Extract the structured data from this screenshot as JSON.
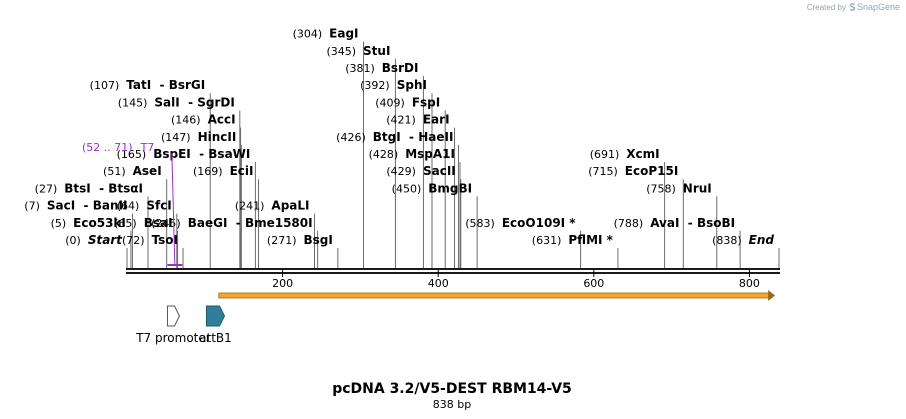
{
  "credit": {
    "prefix": "Created by",
    "brand": "SnapGene"
  },
  "map": {
    "title": "pcDNA 3.2/V5-DEST RBM14-V5",
    "subtitle": "838 bp",
    "length": 838,
    "ticks": [
      {
        "value": 200,
        "label": "200"
      },
      {
        "value": 400,
        "label": "400"
      },
      {
        "value": 600,
        "label": "600"
      },
      {
        "value": 800,
        "label": "800"
      }
    ],
    "enzymes": [
      {
        "name": "Start",
        "pos_label": "(0)",
        "pos": 0,
        "row": 0,
        "italic": true
      },
      {
        "name": "Eco53kI",
        "pos_label": "(5)",
        "pos": 5,
        "row": 1
      },
      {
        "name": "SacI  - BanII",
        "pos_label": "(7)",
        "pos": 7,
        "row": 2
      },
      {
        "name": "BtsI  - BtsαI",
        "pos_label": "(27)",
        "pos": 27,
        "row": 3
      },
      {
        "name": "AseI",
        "pos_label": "(51)",
        "pos": 51,
        "row": 4
      },
      {
        "name": "TsoI",
        "pos_label": "(72)",
        "pos": 72,
        "row": 0
      },
      {
        "name": "BsaI",
        "pos_label": "(65)",
        "pos": 65,
        "row": 1
      },
      {
        "name": "SfcI",
        "pos_label": "(64)",
        "pos": 64,
        "row": 2
      },
      {
        "name": "TatI  - BsrGI",
        "pos_label": "(107)",
        "pos": 107,
        "row": 9
      },
      {
        "name": "SalI  - SgrDI",
        "pos_label": "(145)",
        "pos": 145,
        "row": 8
      },
      {
        "name": "AccI",
        "pos_label": "(146)",
        "pos": 146,
        "row": 7
      },
      {
        "name": "HincII",
        "pos_label": "(147)",
        "pos": 147,
        "row": 6
      },
      {
        "name": "BspEI  - BsaWI",
        "pos_label": "(165)",
        "pos": 165,
        "row": 5
      },
      {
        "name": "EciI",
        "pos_label": "(169)",
        "pos": 169,
        "row": 4
      },
      {
        "name": "ApaLI",
        "pos_label": "(241)",
        "pos": 241,
        "row": 2
      },
      {
        "name": "BaeGI  - Bme1580I",
        "pos_label": "(245)",
        "pos": 245,
        "row": 1
      },
      {
        "name": "BsgI",
        "pos_label": "(271)",
        "pos": 271,
        "row": 0
      },
      {
        "name": "EagI",
        "pos_label": "(304)",
        "pos": 304,
        "row": 12
      },
      {
        "name": "StuI",
        "pos_label": "(345)",
        "pos": 345,
        "row": 11
      },
      {
        "name": "BsrDI",
        "pos_label": "(381)",
        "pos": 381,
        "row": 10
      },
      {
        "name": "SphI",
        "pos_label": "(392)",
        "pos": 392,
        "row": 9
      },
      {
        "name": "FspI",
        "pos_label": "(409)",
        "pos": 409,
        "row": 8
      },
      {
        "name": "EarI",
        "pos_label": "(421)",
        "pos": 421,
        "row": 7
      },
      {
        "name": "BtgI  - HaeII",
        "pos_label": "(426)",
        "pos": 426,
        "row": 6
      },
      {
        "name": "MspA1I",
        "pos_label": "(428)",
        "pos": 428,
        "row": 5
      },
      {
        "name": "SacII",
        "pos_label": "(429)",
        "pos": 429,
        "row": 4
      },
      {
        "name": "BmgBI",
        "pos_label": "(450)",
        "pos": 450,
        "row": 3
      },
      {
        "name": "EcoO109I *",
        "pos_label": "(583)",
        "pos": 583,
        "row": 1
      },
      {
        "name": "PflMI *",
        "pos_label": "(631)",
        "pos": 631,
        "row": 0
      },
      {
        "name": "XcmI",
        "pos_label": "(691)",
        "pos": 691,
        "row": 5
      },
      {
        "name": "EcoP15I",
        "pos_label": "(715)",
        "pos": 715,
        "row": 4
      },
      {
        "name": "NruI",
        "pos_label": "(758)",
        "pos": 758,
        "row": 3
      },
      {
        "name": "AvaI  - BsoBI",
        "pos_label": "(788)",
        "pos": 788,
        "row": 1
      },
      {
        "name": "End",
        "pos_label": "(838)",
        "pos": 838,
        "row": 0,
        "italic": true
      }
    ],
    "primer": {
      "name": "T7",
      "range_label": "(52 .. 71)",
      "start": 52,
      "end": 71
    },
    "features": [
      {
        "name": "T7 promoter",
        "start": 52,
        "end": 71,
        "color": "#ffffff",
        "kind": "promoter"
      },
      {
        "name": "attB1",
        "start": 97,
        "end": 121,
        "color": "#2f7f98",
        "kind": "site"
      }
    ],
    "orf": {
      "start": 118,
      "end": 833,
      "color": "#f4a52b",
      "edge_color": "#9a6a18"
    }
  }
}
